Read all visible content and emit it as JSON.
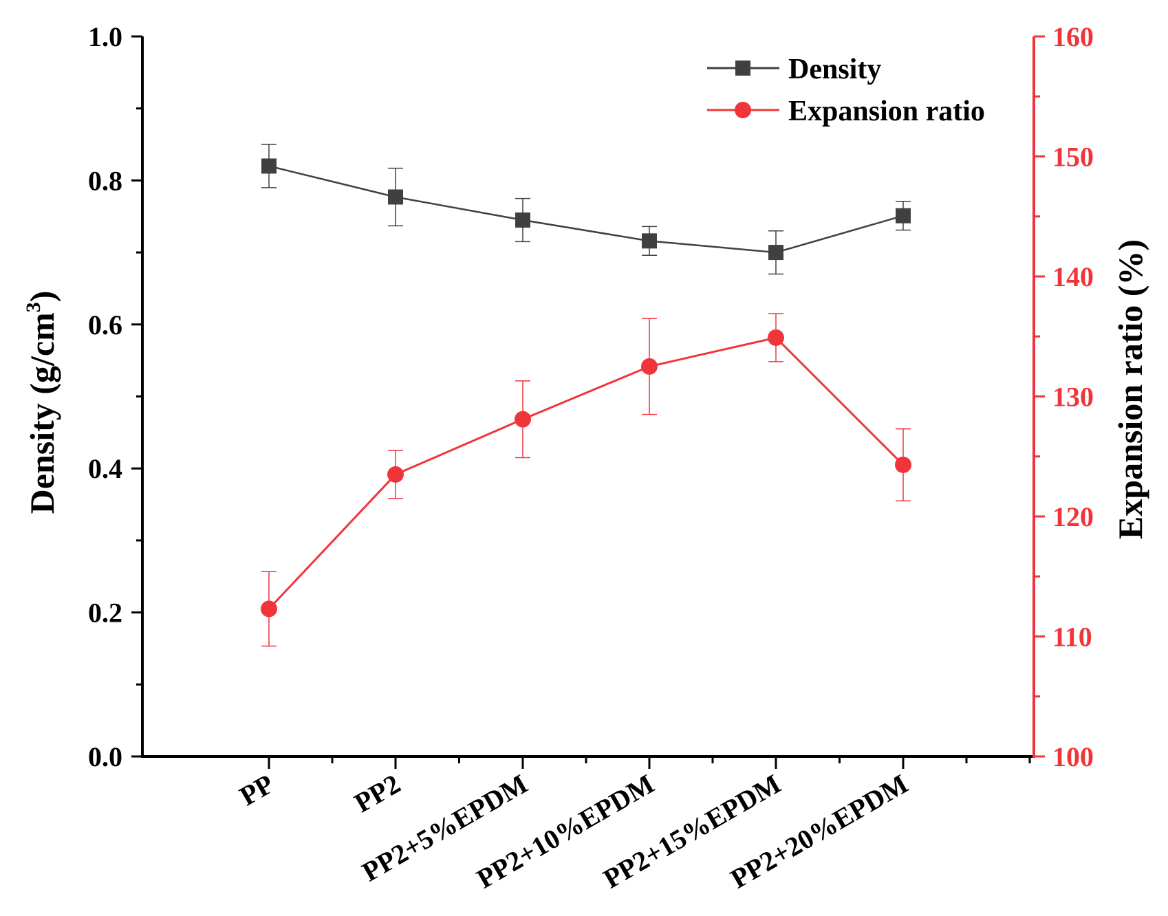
{
  "chart_data": {
    "type": "line",
    "categories": [
      "PP",
      "PP2",
      "PP2+5%EPDM",
      "PP2+10%EPDM",
      "PP2+15%EPDM",
      "PP2+20%EPDM"
    ],
    "series": [
      {
        "name": "Density",
        "axis": "left",
        "marker": "square",
        "color": "#404040",
        "values": [
          0.82,
          0.777,
          0.745,
          0.716,
          0.7,
          0.751
        ],
        "errors": [
          0.03,
          0.04,
          0.03,
          0.02,
          0.03,
          0.02
        ]
      },
      {
        "name": "Expansion ratio",
        "axis": "right",
        "marker": "circle",
        "color": "#f0353a",
        "values": [
          112.3,
          123.5,
          128.1,
          132.5,
          134.9,
          124.3
        ],
        "errors": [
          3.1,
          2.0,
          3.2,
          4.0,
          2.0,
          3.0
        ]
      }
    ],
    "y_left": {
      "label": "Density (g/cm",
      "label_sup": "3",
      "label_tail": ")",
      "lim": [
        0,
        1.0
      ],
      "ticks": [
        "0.0",
        "0.2",
        "0.4",
        "0.6",
        "0.8",
        "1.0"
      ]
    },
    "y_right": {
      "label": "Expansion ratio (%)",
      "lim": [
        100,
        160
      ],
      "ticks": [
        "100",
        "110",
        "120",
        "130",
        "140",
        "150",
        "160"
      ],
      "color": "#f0353a"
    },
    "legend": {
      "position": "top-right",
      "entries": [
        "Density",
        "Expansion ratio"
      ]
    },
    "xlabel": "",
    "title": ""
  }
}
